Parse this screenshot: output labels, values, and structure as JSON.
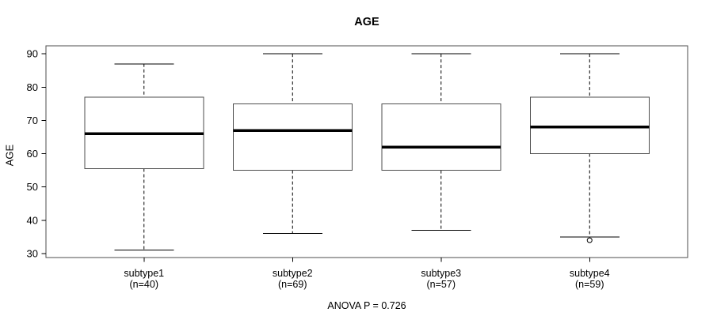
{
  "colors": {
    "ink": "#000000",
    "frame": "#4d4d4d",
    "background": "#ffffff"
  },
  "chart_data": {
    "type": "boxplot",
    "title": "AGE",
    "ylabel": "AGE",
    "xlabel": "",
    "annotation": "ANOVA P = 0.726",
    "ylim": [
      28.8,
      92.4
    ],
    "yticks": [
      30,
      40,
      50,
      60,
      70,
      80,
      90
    ],
    "grid": false,
    "categories": [
      "subtype1",
      "subtype2",
      "subtype3",
      "subtype4"
    ],
    "sublabels": [
      "(n=40)",
      "(n=69)",
      "(n=57)",
      "(n=59)"
    ],
    "series": [
      {
        "name": "subtype1",
        "n": 40,
        "whisker_low": 31,
        "q1": 55.5,
        "median": 66,
        "q3": 77,
        "whisker_high": 87,
        "outliers": []
      },
      {
        "name": "subtype2",
        "n": 69,
        "whisker_low": 36,
        "q1": 55,
        "median": 67,
        "q3": 75,
        "whisker_high": 90,
        "outliers": []
      },
      {
        "name": "subtype3",
        "n": 57,
        "whisker_low": 37,
        "q1": 55,
        "median": 62,
        "q3": 75,
        "whisker_high": 90,
        "outliers": []
      },
      {
        "name": "subtype4",
        "n": 59,
        "whisker_low": 35,
        "q1": 60,
        "median": 68,
        "q3": 77,
        "whisker_high": 90,
        "outliers": [
          34
        ]
      }
    ]
  }
}
